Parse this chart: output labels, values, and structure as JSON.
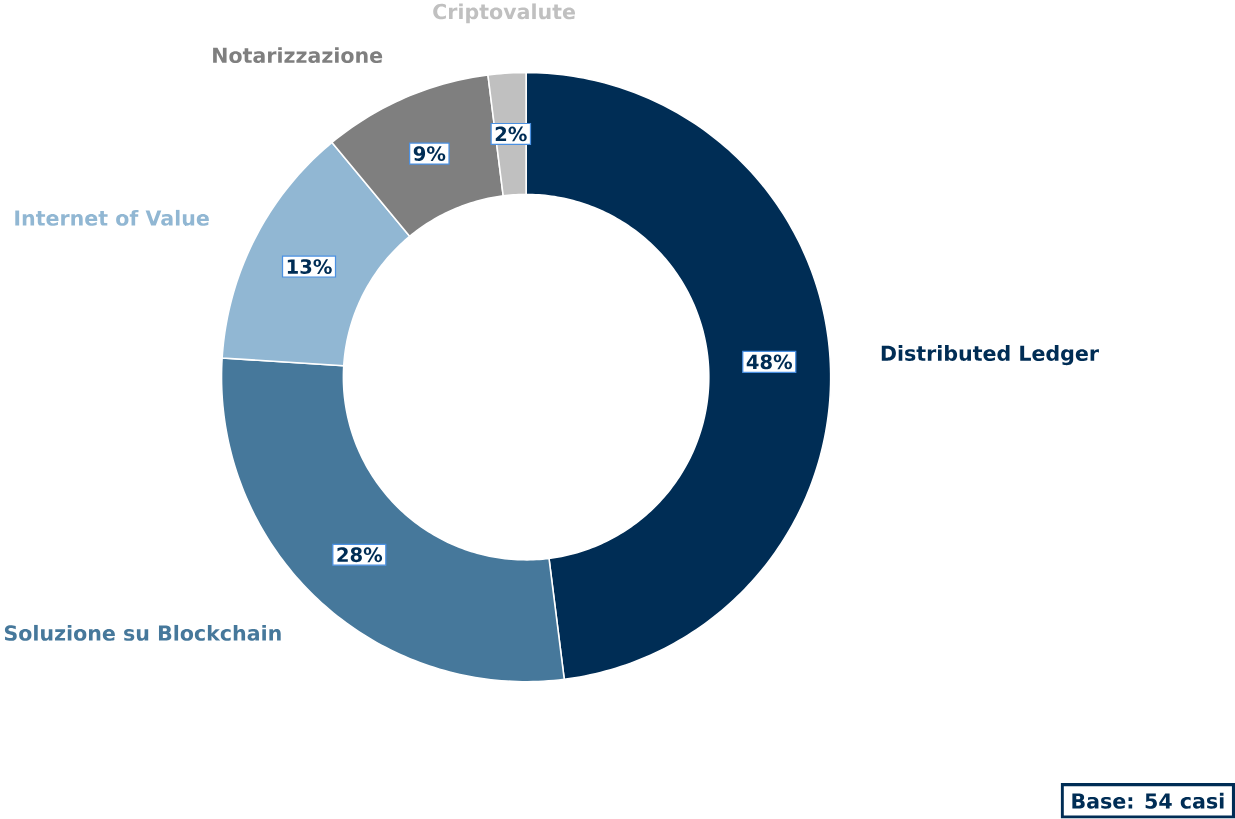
{
  "chart_data": {
    "type": "donut",
    "categories": [
      "Distributed Ledger",
      "Soluzione su Blockchain",
      "Internet of Value",
      "Notarizzazione",
      "Criptovalute"
    ],
    "values": [
      48,
      28,
      13,
      9,
      2
    ],
    "value_labels": [
      "48%",
      "28%",
      "13%",
      "9%",
      "2%"
    ],
    "colors": [
      "#002d55",
      "#46789b",
      "#91b7d3",
      "#7f7f7f",
      "#c0c0c0"
    ],
    "annotations": [
      "Base: 54 casi"
    ]
  }
}
